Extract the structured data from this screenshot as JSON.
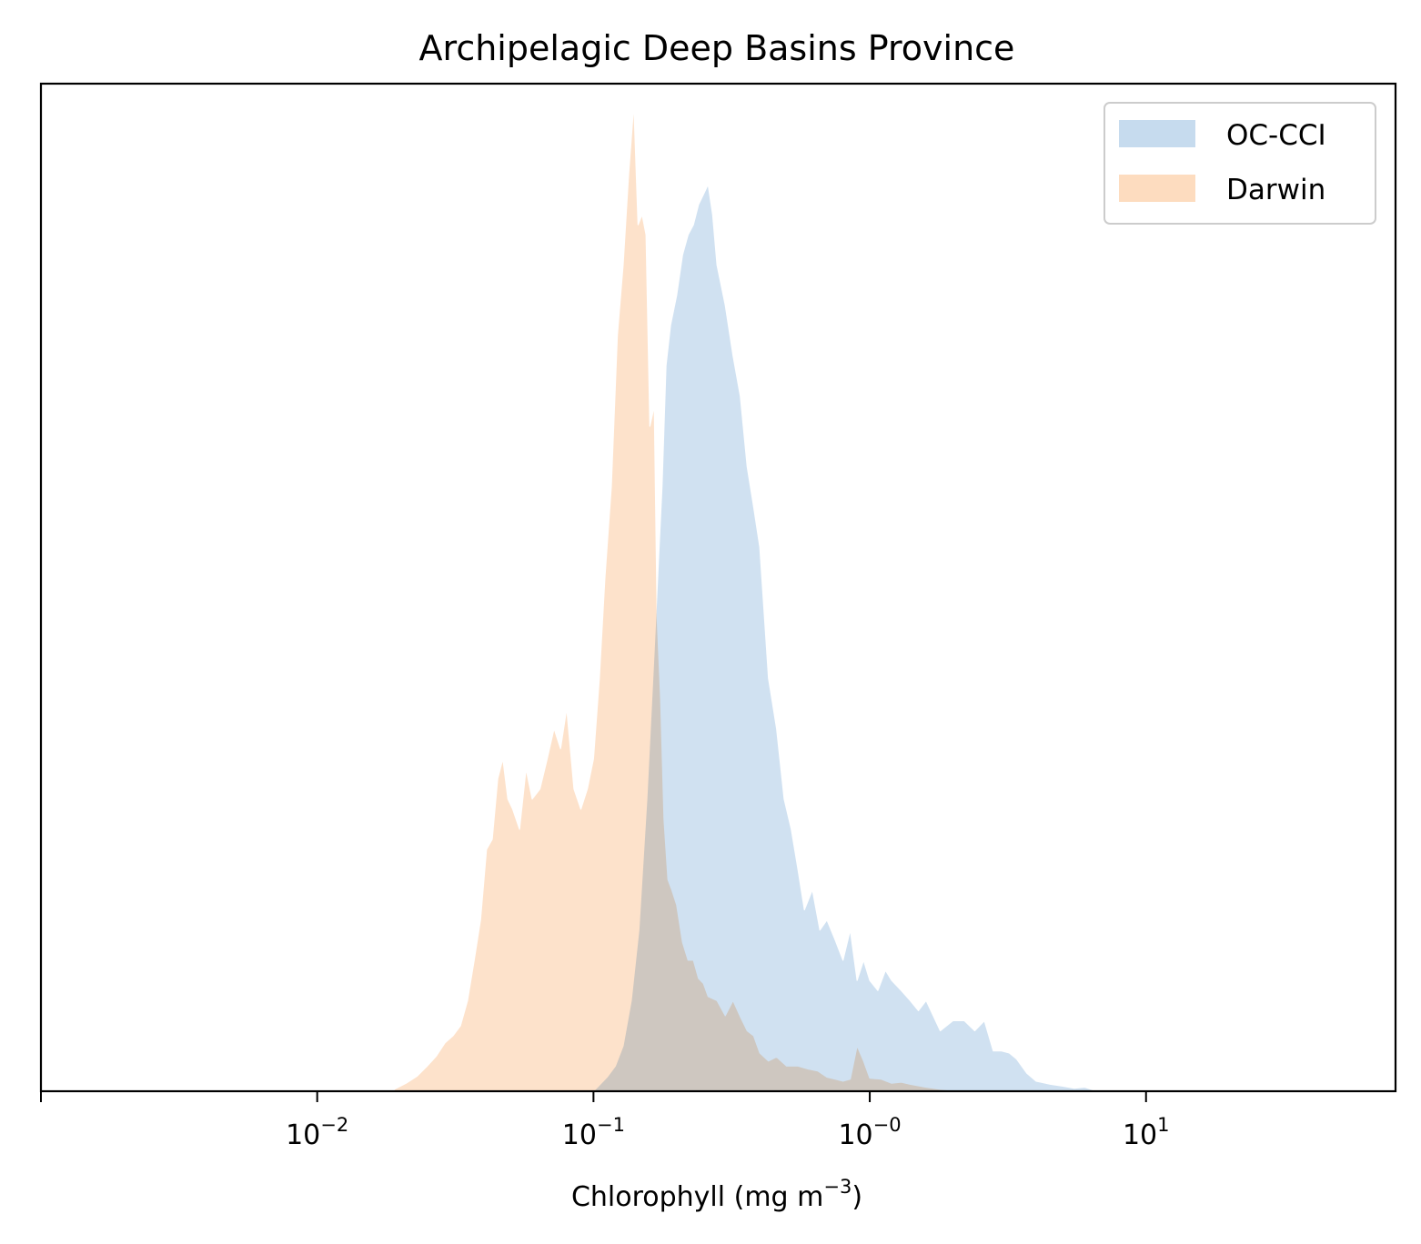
{
  "chart_data": {
    "type": "area",
    "title": "Archipelagic Deep Basins Province",
    "xlabel": "Chlorophyll  (mg m",
    "xlabel_superscript": "−3",
    "xlabel_suffix": ")",
    "ylabel": "",
    "xscale": "log",
    "xlim": [
      0.001,
      80
    ],
    "ylim": [
      0,
      1
    ],
    "x_ticks": [
      {
        "value": 0.01,
        "base": "10",
        "exp": "−2"
      },
      {
        "value": 0.1,
        "base": "10",
        "exp": "−1"
      },
      {
        "value": 1,
        "base": "10",
        "exp": "−0"
      },
      {
        "value": 10,
        "base": "10",
        "exp": "1"
      }
    ],
    "y_ticks_visible": false,
    "grid": false,
    "legend_position": "top-right",
    "series": [
      {
        "name": "OC-CCI",
        "color": "#c6dbee",
        "x": [
          0.1,
          0.105,
          0.112,
          0.12,
          0.128,
          0.137,
          0.146,
          0.156,
          0.166,
          0.177,
          0.183,
          0.19,
          0.2,
          0.21,
          0.22,
          0.23,
          0.24,
          0.25,
          0.26,
          0.27,
          0.28,
          0.3,
          0.32,
          0.34,
          0.36,
          0.38,
          0.4,
          0.43,
          0.46,
          0.49,
          0.52,
          0.55,
          0.58,
          0.62,
          0.66,
          0.7,
          0.75,
          0.8,
          0.85,
          0.9,
          0.95,
          1.0,
          1.07,
          1.14,
          1.2,
          1.3,
          1.4,
          1.5,
          1.6,
          1.8,
          2.0,
          2.2,
          2.4,
          2.6,
          2.8,
          3.0,
          3.2,
          3.4,
          3.7,
          4.0,
          4.5,
          5.0,
          5.5,
          6.0,
          6.5,
          7.0
        ],
        "y": [
          0.0,
          0.006,
          0.014,
          0.025,
          0.045,
          0.09,
          0.16,
          0.29,
          0.44,
          0.6,
          0.72,
          0.76,
          0.79,
          0.83,
          0.85,
          0.86,
          0.88,
          0.89,
          0.9,
          0.87,
          0.82,
          0.78,
          0.73,
          0.69,
          0.62,
          0.58,
          0.54,
          0.41,
          0.36,
          0.29,
          0.26,
          0.22,
          0.18,
          0.2,
          0.16,
          0.17,
          0.15,
          0.13,
          0.16,
          0.11,
          0.13,
          0.11,
          0.1,
          0.12,
          0.11,
          0.1,
          0.09,
          0.08,
          0.09,
          0.06,
          0.07,
          0.07,
          0.06,
          0.07,
          0.04,
          0.04,
          0.038,
          0.032,
          0.018,
          0.01,
          0.007,
          0.005,
          0.003,
          0.004,
          0.001,
          0.0
        ]
      },
      {
        "name": "Darwin",
        "color": "#fddcbf",
        "x": [
          0.019,
          0.021,
          0.023,
          0.025,
          0.027,
          0.029,
          0.031,
          0.033,
          0.035,
          0.037,
          0.039,
          0.041,
          0.043,
          0.045,
          0.047,
          0.049,
          0.051,
          0.054,
          0.057,
          0.06,
          0.064,
          0.068,
          0.072,
          0.076,
          0.08,
          0.085,
          0.09,
          0.095,
          0.1,
          0.105,
          0.11,
          0.116,
          0.122,
          0.128,
          0.134,
          0.14,
          0.145,
          0.15,
          0.155,
          0.16,
          0.166,
          0.17,
          0.175,
          0.18,
          0.186,
          0.192,
          0.2,
          0.21,
          0.22,
          0.23,
          0.24,
          0.25,
          0.26,
          0.28,
          0.3,
          0.32,
          0.34,
          0.36,
          0.38,
          0.4,
          0.43,
          0.46,
          0.5,
          0.55,
          0.6,
          0.65,
          0.7,
          0.75,
          0.8,
          0.85,
          0.9,
          0.95,
          1.0,
          1.1,
          1.2,
          1.3,
          1.4,
          1.6,
          1.8,
          2.0,
          2.3
        ],
        "y": [
          0.002,
          0.008,
          0.015,
          0.025,
          0.035,
          0.048,
          0.055,
          0.065,
          0.09,
          0.13,
          0.17,
          0.24,
          0.25,
          0.31,
          0.33,
          0.29,
          0.28,
          0.26,
          0.32,
          0.29,
          0.3,
          0.33,
          0.36,
          0.34,
          0.38,
          0.3,
          0.28,
          0.3,
          0.33,
          0.41,
          0.51,
          0.6,
          0.75,
          0.82,
          0.91,
          0.98,
          0.86,
          0.87,
          0.85,
          0.66,
          0.68,
          0.47,
          0.39,
          0.27,
          0.21,
          0.2,
          0.185,
          0.148,
          0.13,
          0.13,
          0.112,
          0.107,
          0.094,
          0.09,
          0.075,
          0.09,
          0.074,
          0.06,
          0.055,
          0.038,
          0.03,
          0.034,
          0.025,
          0.025,
          0.022,
          0.02,
          0.014,
          0.012,
          0.01,
          0.012,
          0.045,
          0.03,
          0.013,
          0.012,
          0.008,
          0.009,
          0.007,
          0.004,
          0.002,
          0.001,
          0.0
        ]
      }
    ]
  }
}
